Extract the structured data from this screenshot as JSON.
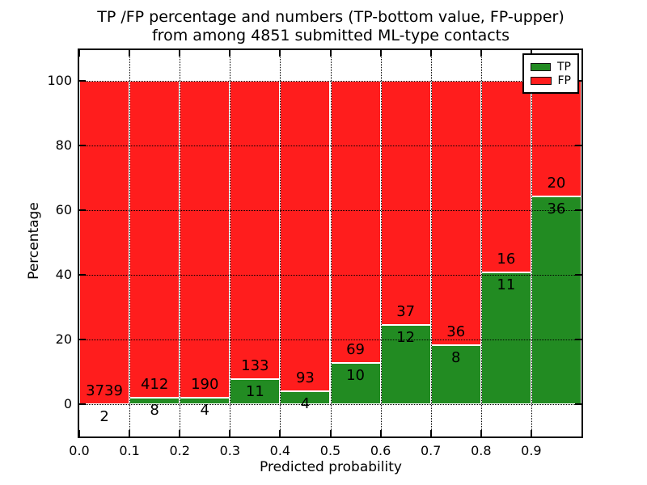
{
  "title": {
    "line1": "TP /FP percentage and numbers (TP-bottom value, FP-upper)",
    "line2": "from among 4851 submitted ML-type contacts"
  },
  "axes": {
    "xlabel": "Predicted probability",
    "ylabel": "Percentage",
    "xtick_labels": [
      "0.0",
      "0.1",
      "0.2",
      "0.3",
      "0.4",
      "0.5",
      "0.6",
      "0.7",
      "0.8",
      "0.9"
    ],
    "ytick_values": [
      0,
      20,
      40,
      60,
      80,
      100
    ]
  },
  "legend": {
    "items": [
      {
        "label": "TP",
        "color": "#228b22"
      },
      {
        "label": "FP",
        "color": "#ff1d1d"
      }
    ],
    "position": "upper right"
  },
  "colors": {
    "tp": "#228b22",
    "fp": "#ff1d1d",
    "bar_edge": "#ffffff",
    "grid": "#000000",
    "background": "#ffffff"
  },
  "chart_data": {
    "type": "bar",
    "stacked": true,
    "normalized_to_percent": true,
    "bin_edges": [
      0.0,
      0.1,
      0.2,
      0.3,
      0.4,
      0.5,
      0.6,
      0.7,
      0.8,
      0.9,
      1.0
    ],
    "series": [
      {
        "name": "TP",
        "color": "#228b22",
        "counts": [
          2,
          8,
          4,
          11,
          4,
          10,
          12,
          8,
          11,
          36
        ]
      },
      {
        "name": "FP",
        "color": "#ff1d1d",
        "counts": [
          3739,
          412,
          190,
          133,
          93,
          69,
          37,
          36,
          16,
          20
        ]
      }
    ],
    "total_contacts": 4851,
    "title": "TP /FP percentage and numbers (TP-bottom value, FP-upper) from among 4851 submitted ML-type contacts",
    "xlabel": "Predicted probability",
    "ylabel": "Percentage",
    "xlim": [
      0,
      1
    ],
    "ylim": [
      -10,
      110
    ],
    "yticks": [
      0,
      20,
      40,
      60,
      80,
      100
    ],
    "xticks": [
      0.0,
      0.1,
      0.2,
      0.3,
      0.4,
      0.5,
      0.6,
      0.7,
      0.8,
      0.9
    ],
    "grid": "dotted",
    "legend_position": "upper right",
    "label_note": "TP count printed below segment boundary, FP count above"
  }
}
